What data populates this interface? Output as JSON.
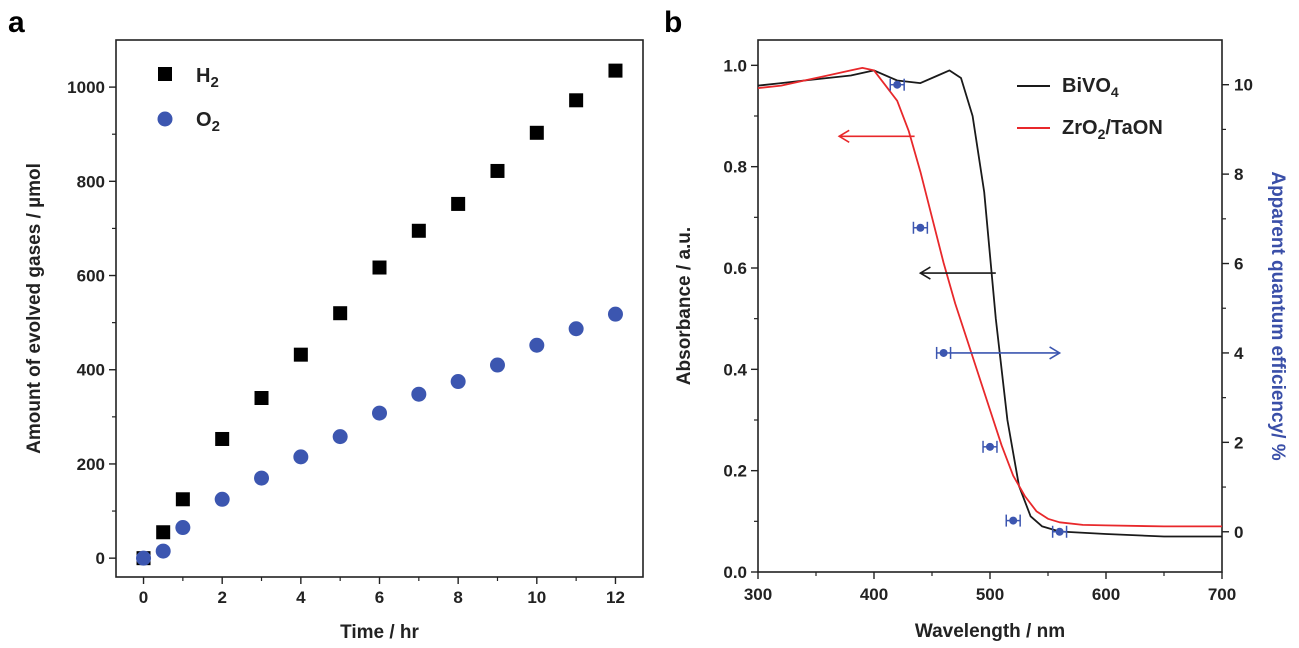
{
  "panels": [
    "a",
    "b"
  ],
  "chart_data": [
    {
      "type": "scatter",
      "panel": "a",
      "xlabel": "Time / hr",
      "ylabel": "Amount of evolved gases / µmol",
      "xlim": [
        -0.7,
        12.7
      ],
      "ylim": [
        -40,
        1100
      ],
      "xticks": [
        0,
        2,
        4,
        6,
        8,
        10,
        12
      ],
      "yticks": [
        0,
        200,
        400,
        600,
        800,
        1000
      ],
      "legend_position": "top-left",
      "series": [
        {
          "name": "H2",
          "name_main": "H",
          "name_sub": "2",
          "marker": "square",
          "color": "#000000",
          "x": [
            0,
            0.5,
            1,
            2,
            3,
            4,
            5,
            6,
            7,
            8,
            9,
            10,
            11,
            12
          ],
          "y": [
            0,
            55,
            125,
            253,
            340,
            432,
            520,
            617,
            695,
            752,
            822,
            903,
            972,
            1035
          ]
        },
        {
          "name": "O2",
          "name_main": "O",
          "name_sub": "2",
          "marker": "circle",
          "color": "#3c56b0",
          "x": [
            0,
            0.5,
            1,
            2,
            3,
            4,
            5,
            6,
            7,
            8,
            9,
            10,
            11,
            12
          ],
          "y": [
            0,
            15,
            65,
            125,
            170,
            215,
            258,
            308,
            348,
            375,
            410,
            452,
            487,
            518
          ]
        }
      ]
    },
    {
      "type": "line",
      "panel": "b",
      "xlabel": "Wavelength / nm",
      "ylabel": "Absorbance / a.u.",
      "y2label": "Apparent quantum efficiency/ %",
      "xlim": [
        300,
        700
      ],
      "ylim": [
        0.0,
        1.05
      ],
      "y2lim": [
        -0.9,
        11.0
      ],
      "xticks": [
        300,
        400,
        500,
        600,
        700
      ],
      "yticks": [
        0.0,
        0.2,
        0.4,
        0.6,
        0.8,
        1.0
      ],
      "y2ticks": [
        0,
        2,
        4,
        6,
        8,
        10
      ],
      "legend_position": "top-right",
      "series": [
        {
          "name": "BiVO4",
          "name_main": "BiVO",
          "name_sub": "4",
          "name_rest": "",
          "color": "#1a1a1a",
          "x": [
            300,
            320,
            340,
            360,
            380,
            400,
            420,
            440,
            455,
            465,
            475,
            485,
            495,
            505,
            515,
            525,
            535,
            545,
            560,
            600,
            650,
            700
          ],
          "y": [
            0.96,
            0.965,
            0.97,
            0.975,
            0.98,
            0.99,
            0.97,
            0.965,
            0.98,
            0.99,
            0.975,
            0.9,
            0.75,
            0.5,
            0.3,
            0.17,
            0.11,
            0.09,
            0.08,
            0.075,
            0.07,
            0.07
          ]
        },
        {
          "name": "ZrO2/TaON",
          "name_main": "ZrO",
          "name_sub": "2",
          "name_rest": "/TaON",
          "color": "#e8282b",
          "x": [
            300,
            320,
            340,
            360,
            380,
            390,
            400,
            410,
            420,
            430,
            440,
            450,
            460,
            470,
            480,
            490,
            500,
            510,
            520,
            530,
            540,
            550,
            560,
            580,
            600,
            650,
            700
          ],
          "y": [
            0.955,
            0.96,
            0.97,
            0.98,
            0.99,
            0.995,
            0.99,
            0.96,
            0.93,
            0.87,
            0.79,
            0.7,
            0.61,
            0.53,
            0.46,
            0.39,
            0.32,
            0.25,
            0.19,
            0.15,
            0.12,
            0.105,
            0.098,
            0.093,
            0.092,
            0.09,
            0.09
          ]
        },
        {
          "name": "AQE",
          "axis": "right",
          "marker": "circle-errorbar",
          "color": "#3c56b0",
          "x": [
            420,
            440,
            460,
            500,
            520,
            560
          ],
          "y": [
            10.0,
            6.8,
            4.0,
            1.9,
            0.25,
            0.0
          ],
          "xerr": 6
        }
      ],
      "annotations": [
        {
          "type": "arrow-left",
          "color": "#e8282b",
          "y": 0.86,
          "x_from": 435,
          "x_to": 370
        },
        {
          "type": "arrow-left",
          "color": "#1a1a1a",
          "y": 0.59,
          "x_from": 505,
          "x_to": 440
        },
        {
          "type": "arrow-right",
          "color": "#3c56b0",
          "y2": 4.0,
          "x_from": 465,
          "x_to": 560
        }
      ]
    }
  ]
}
